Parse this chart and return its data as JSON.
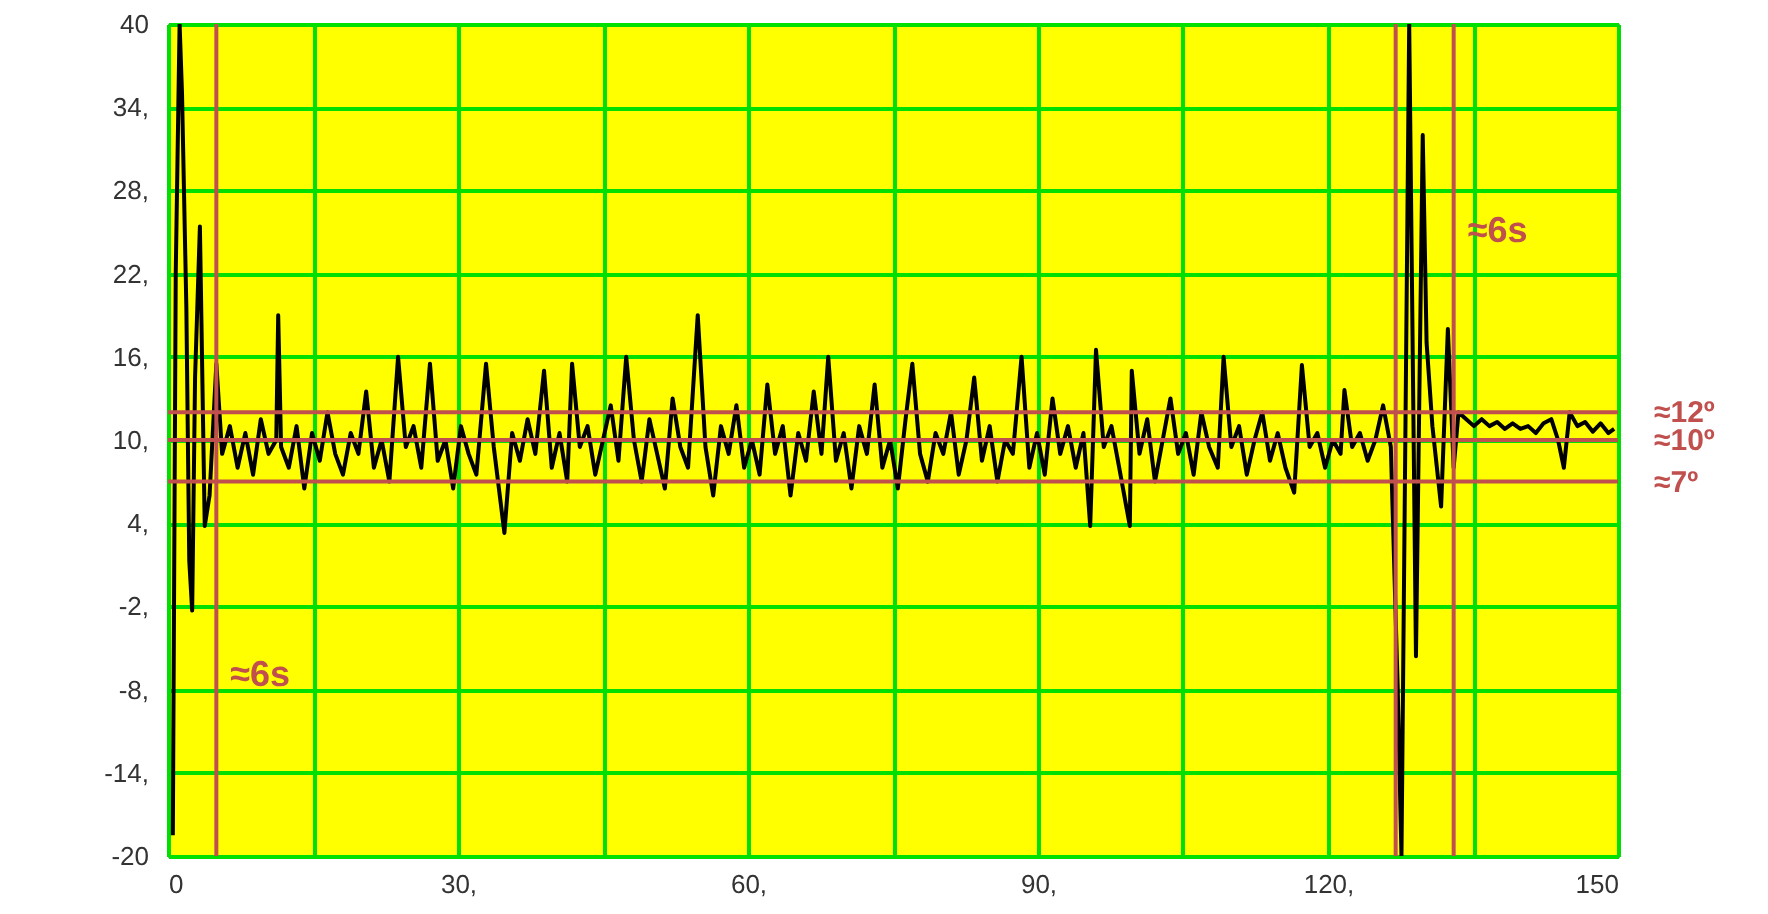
{
  "chart_data": {
    "type": "line",
    "x": [
      0.5,
      0.8,
      1.2,
      1.45,
      1.9,
      2.2,
      2.5,
      2.8,
      3.3,
      3.8,
      4.3,
      5,
      5.6,
      6.4,
      7.2,
      8,
      8.8,
      9.6,
      10.4,
      11.2,
      11.4,
      11.7,
      12.5,
      13.3,
      14.1,
      14.9,
      15.7,
      16.5,
      17.3,
      18.1,
      18.9,
      19.7,
      20.5,
      21.3,
      22.1,
      22.9,
      23.8,
      24.6,
      25.4,
      26.2,
      27.1,
      27.9,
      28.7,
      29.5,
      30.3,
      31.1,
      31.9,
      32.9,
      33.7,
      34.8,
      35.6,
      36.4,
      37.2,
      38,
      38.9,
      39.7,
      40.5,
      41.3,
      41.8,
      42.6,
      43.4,
      44.2,
      45,
      45.8,
      46.6,
      47.4,
      48.2,
      49,
      49.8,
      50.6,
      51.4,
      52.2,
      53,
      53.8,
      54.8,
      55.6,
      56.4,
      57.2,
      58,
      58.8,
      59.6,
      60.4,
      61.2,
      62,
      62.8,
      63.6,
      64.4,
      65.2,
      66,
      66.8,
      67.6,
      68.3,
      69.1,
      69.9,
      70.7,
      71.5,
      72.3,
      73.1,
      73.9,
      74.7,
      75.5,
      76.3,
      77,
      77.8,
      78.6,
      79.4,
      80.2,
      81,
      81.8,
      82.6,
      83.4,
      84.2,
      85,
      85.8,
      86.6,
      87.4,
      88.3,
      89.1,
      89.9,
      90.7,
      91.5,
      92.3,
      93.1,
      93.9,
      94.7,
      95.4,
      96,
      96.8,
      97.6,
      98.4,
      99.5,
      99.7,
      100.5,
      101.3,
      102.1,
      102.9,
      103.7,
      104.5,
      105.3,
      106.1,
      106.9,
      107.7,
      108.6,
      109.2,
      110,
      110.8,
      111.6,
      112.4,
      113.2,
      114,
      114.8,
      115.6,
      116.5,
      117.3,
      118.1,
      118.9,
      119.7,
      120.5,
      121.3,
      121.7,
      122.5,
      123.3,
      124.1,
      124.9,
      125.7,
      126.5,
      127.2,
      127.6,
      128.4,
      129.1,
      129.8,
      130.2,
      130.8,
      131.7,
      132.4,
      133,
      133.5,
      134.3,
      135.1,
      135.9,
      136.7,
      137.5,
      138.3,
      139.1,
      139.9,
      140.7,
      141.5,
      142.3,
      143.1,
      143.8,
      144.4,
      145,
      145.8,
      146.6,
      147.4,
      148.2,
      149,
      149.6
    ],
    "series": [
      {
        "color": "#000000",
        "values": [
          -18.5,
          22,
          40,
          35,
          19.5,
          1.3,
          -2.3,
          14.5,
          25.4,
          3.8,
          6,
          15.5,
          9,
          11,
          8,
          10.5,
          7.5,
          11.5,
          9,
          10,
          19,
          9.5,
          8,
          11,
          6.5,
          10.5,
          8.5,
          12,
          9,
          7.5,
          10.5,
          9,
          13.5,
          8,
          10,
          7,
          16,
          9.5,
          11,
          8,
          15.5,
          8.5,
          10,
          6.5,
          11,
          9,
          7.5,
          15.5,
          9.5,
          3.3,
          10.5,
          8.5,
          11.5,
          9,
          15,
          8,
          10.5,
          7,
          15.5,
          9.5,
          11,
          7.5,
          10,
          12.5,
          8.5,
          16,
          10,
          7,
          11.5,
          9,
          6.5,
          13,
          9.5,
          8,
          19,
          9.5,
          6,
          11,
          9,
          12.5,
          8,
          10,
          7.5,
          14,
          9,
          11,
          6,
          10.5,
          8.5,
          13.5,
          9,
          16,
          8.5,
          10.5,
          6.5,
          11,
          9,
          14,
          8,
          10,
          6.5,
          11.5,
          15.5,
          9,
          7,
          10.5,
          9,
          12,
          7.5,
          10,
          14.5,
          8.5,
          11,
          7,
          10,
          9,
          16,
          8,
          10.5,
          7.5,
          13,
          9,
          11,
          8,
          10.5,
          3.8,
          16.5,
          9.5,
          11,
          8,
          3.8,
          15,
          9,
          11.5,
          7,
          10,
          13,
          9,
          10.5,
          7.5,
          12,
          9.5,
          8,
          16,
          9.5,
          11,
          7.5,
          10,
          12,
          8.5,
          10.5,
          8,
          6.2,
          15.4,
          9.5,
          10.5,
          8,
          10,
          9,
          13.6,
          9.5,
          10.5,
          8.5,
          10,
          12.5,
          9.5,
          -7.6,
          -20,
          40,
          -5.6,
          32,
          17,
          11,
          5.2,
          18,
          8,
          12,
          11.5,
          11,
          11.5,
          11,
          11.3,
          10.8,
          11.2,
          10.8,
          11,
          10.5,
          11.2,
          11.5,
          10,
          8,
          12,
          11,
          11.3,
          10.6,
          11.2,
          10.5,
          10.8
        ]
      }
    ],
    "xlim": [
      0,
      150
    ],
    "xticks": [
      {
        "value": 0,
        "label": "0"
      },
      {
        "value": 15,
        "label": null
      },
      {
        "value": 30,
        "label": "30,"
      },
      {
        "value": 45,
        "label": null
      },
      {
        "value": 60,
        "label": "60,"
      },
      {
        "value": 75,
        "label": null
      },
      {
        "value": 90,
        "label": "90,"
      },
      {
        "value": 105,
        "label": null
      },
      {
        "value": 120,
        "label": "120,"
      },
      {
        "value": 135,
        "label": null
      },
      {
        "value": 150,
        "label": "150"
      }
    ],
    "ylim": [
      -20,
      40
    ],
    "yticks": [
      40,
      {
        "value": 34,
        "label": "34,"
      },
      {
        "value": 28,
        "label": "28,"
      },
      {
        "value": 22,
        "label": "22,"
      },
      {
        "value": 16,
        "label": "16,"
      },
      {
        "value": 10,
        "label": "10,"
      },
      {
        "value": 4,
        "label": "4,"
      },
      {
        "value": -2,
        "label": "-2,"
      },
      {
        "value": -8,
        "label": "-8,"
      },
      {
        "value": -14,
        "label": "-14,"
      },
      -20
    ],
    "grid": true,
    "ref_lines": [
      {
        "axis": "y",
        "value": 12,
        "label": "≈12º",
        "color": "#c0504d"
      },
      {
        "axis": "y",
        "value": 10,
        "label": "≈10º",
        "color": "#c0504d"
      },
      {
        "axis": "y",
        "value": 7,
        "label": "≈7º",
        "color": "#c0504d"
      },
      {
        "axis": "x",
        "value": 5,
        "color": "#c0504d"
      },
      {
        "axis": "x",
        "value": 127,
        "color": "#c0504d"
      },
      {
        "axis": "x",
        "value": 133,
        "color": "#c0504d"
      }
    ],
    "annotations": [
      {
        "text": "≈6s",
        "x": 5,
        "y": -7
      },
      {
        "text": "≈6s",
        "x": 133,
        "y": 25
      }
    ]
  }
}
